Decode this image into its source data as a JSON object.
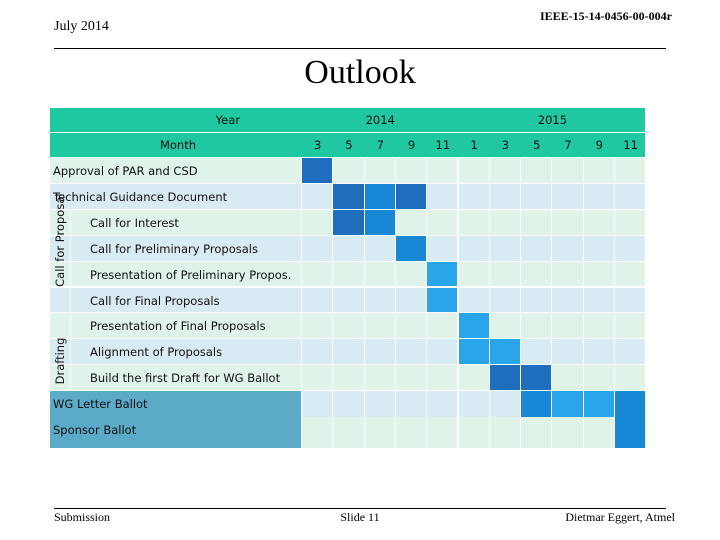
{
  "header": {
    "date": "July 2014",
    "doc_id": "IEEE-15-14-0456-00-004r"
  },
  "title": "Outlook",
  "table": {
    "year_label": "Year",
    "month_label": "Month",
    "years": [
      "2014",
      "2015"
    ],
    "months": [
      "3",
      "5",
      "7",
      "9",
      "11",
      "1",
      "3",
      "5",
      "7",
      "9",
      "11"
    ],
    "groups": {
      "proposal": "Call for Proposal",
      "drafting": "Drafting"
    },
    "rows": [
      {
        "label": "Approval of  PAR and CSD",
        "kind": "top",
        "active": [
          0
        ]
      },
      {
        "label": "Technical Guidance Document",
        "kind": "top",
        "active": [
          1,
          2,
          3
        ]
      },
      {
        "label": "Call for Interest",
        "kind": "sub",
        "active": [
          1,
          2
        ]
      },
      {
        "label": "Call for Preliminary Proposals",
        "kind": "sub",
        "active": [
          3
        ]
      },
      {
        "label": "Presentation of Preliminary Propos.",
        "kind": "sub",
        "active": [
          4
        ]
      },
      {
        "label": "Call for Final Proposals",
        "kind": "sub",
        "active": [
          4
        ]
      },
      {
        "label": "Presentation of Final Proposals",
        "kind": "sub",
        "active": [
          5
        ]
      },
      {
        "label": "Alignment of Proposals",
        "kind": "sub",
        "active": [
          5,
          6
        ]
      },
      {
        "label": "Build the first Draft for WG Ballot",
        "kind": "sub",
        "active": [
          6,
          7
        ]
      },
      {
        "label": "WG Letter Ballot",
        "kind": "ballot",
        "active": [
          7,
          8,
          9,
          10
        ]
      },
      {
        "label": "Sponsor Ballot",
        "kind": "ballot",
        "active": [
          10
        ]
      }
    ]
  },
  "footer": {
    "left": "Submission",
    "center": "Slide 11",
    "right": "Dietmar Eggert, Atmel"
  },
  "colors": {
    "header_bg": "#1fc8a0",
    "light_a": "#dff3e8",
    "light_b": "#d8eaf2",
    "ballot_label": "#5aaac8",
    "active_dark": "#1f6ebd",
    "active_mid": "#1888d4",
    "active_light": "#28a4e8"
  }
}
